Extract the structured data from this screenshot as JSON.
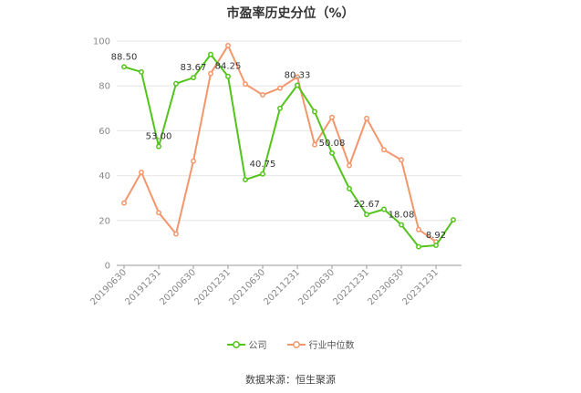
{
  "chart_data": {
    "type": "line",
    "title": "市盈率历史分位（%）",
    "ylim": [
      0,
      100
    ],
    "yticks": [
      0,
      20,
      40,
      60,
      80,
      100
    ],
    "x_tick_labels": [
      "20190630",
      "20191231",
      "20200630",
      "20201231",
      "20210630",
      "20211231",
      "20220630",
      "20221231",
      "20230630",
      "20231231"
    ],
    "x": [
      "20190630",
      "20190930",
      "20191231",
      "20200331",
      "20200630",
      "20200930",
      "20201231",
      "20210331",
      "20210630",
      "20210930",
      "20211231",
      "20220331",
      "20220630",
      "20220930",
      "20221231",
      "20230331",
      "20230630",
      "20230930",
      "20231231",
      "20240331"
    ],
    "series": [
      {
        "name": "公司",
        "color": "#52c41a",
        "values": [
          88.5,
          86.2,
          53.0,
          81.0,
          83.67,
          94.0,
          84.25,
          38.2,
          40.75,
          70.0,
          80.33,
          68.5,
          50.08,
          34.2,
          22.67,
          25.0,
          18.08,
          8.3,
          8.92,
          20.3
        ],
        "labeled_points": [
          {
            "index": 0,
            "text": "88.50"
          },
          {
            "index": 2,
            "text": "53.00"
          },
          {
            "index": 4,
            "text": "83.67"
          },
          {
            "index": 6,
            "text": "84.25"
          },
          {
            "index": 8,
            "text": "40.75"
          },
          {
            "index": 10,
            "text": "80.33"
          },
          {
            "index": 12,
            "text": "50.08"
          },
          {
            "index": 14,
            "text": "22.67"
          },
          {
            "index": 16,
            "text": "18.08"
          },
          {
            "index": 18,
            "text": "8.92"
          }
        ]
      },
      {
        "name": "行业中位数",
        "color": "#f4966b",
        "values": [
          27.8,
          41.5,
          23.5,
          14.0,
          46.5,
          85.5,
          98.0,
          80.8,
          76.0,
          79.0,
          84.0,
          53.8,
          66.0,
          44.5,
          65.5,
          51.5,
          47.0,
          16.0,
          10.5,
          null
        ]
      }
    ]
  },
  "source": "数据来源：恒生聚源"
}
